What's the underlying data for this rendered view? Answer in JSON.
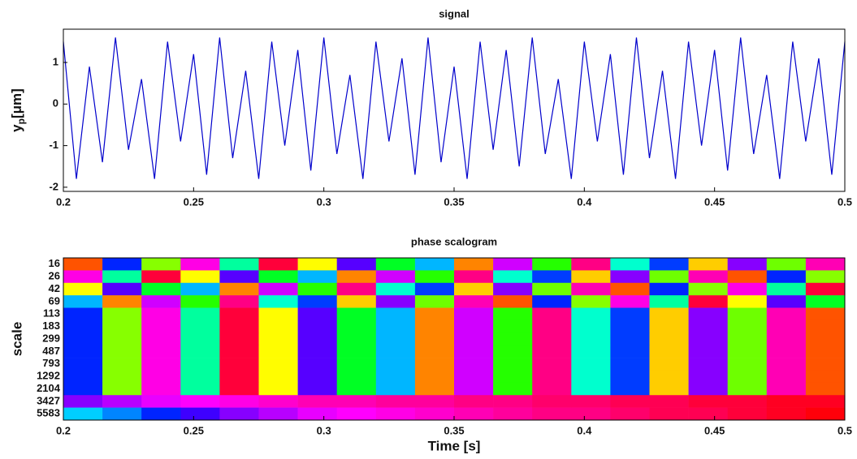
{
  "chart_data": [
    {
      "type": "line",
      "title": "signal",
      "ylabel": "y",
      "ylabel_sub": "p",
      "ylabel_unit": "[μm]",
      "color": "#0000cc",
      "x": [
        0.2,
        0.205,
        0.21,
        0.215,
        0.22,
        0.225,
        0.23,
        0.235,
        0.24,
        0.245,
        0.25,
        0.255,
        0.26,
        0.265,
        0.27,
        0.275,
        0.28,
        0.285,
        0.29,
        0.295,
        0.3,
        0.305,
        0.31,
        0.315,
        0.32,
        0.325,
        0.33,
        0.335,
        0.34,
        0.345,
        0.35,
        0.355,
        0.36,
        0.365,
        0.37,
        0.375,
        0.38,
        0.385,
        0.39,
        0.395,
        0.4,
        0.405,
        0.41,
        0.415,
        0.42,
        0.425,
        0.43,
        0.435,
        0.44,
        0.445,
        0.45,
        0.455,
        0.46,
        0.465,
        0.47,
        0.475,
        0.48,
        0.485,
        0.49,
        0.495,
        0.5
      ],
      "values": [
        1.5,
        -1.8,
        0.9,
        -1.4,
        1.6,
        -1.1,
        0.6,
        -1.8,
        1.5,
        -0.9,
        1.2,
        -1.7,
        1.6,
        -1.3,
        0.8,
        -1.8,
        1.5,
        -1.0,
        1.3,
        -1.6,
        1.6,
        -1.2,
        0.7,
        -1.8,
        1.5,
        -0.9,
        1.1,
        -1.7,
        1.6,
        -1.4,
        0.9,
        -1.8,
        1.5,
        -1.1,
        1.3,
        -1.5,
        1.6,
        -1.2,
        0.6,
        -1.8,
        1.5,
        -0.9,
        1.2,
        -1.7,
        1.6,
        -1.3,
        0.8,
        -1.8,
        1.5,
        -1.0,
        1.3,
        -1.6,
        1.6,
        -1.2,
        0.7,
        -1.8,
        1.5,
        -0.9,
        1.1,
        -1.7,
        1.5
      ],
      "xlim": [
        0.2,
        0.5
      ],
      "xticks": [
        0.2,
        0.25,
        0.3,
        0.35,
        0.4,
        0.45,
        0.5
      ],
      "ylim": [
        -2.1,
        1.8
      ],
      "yticks": [
        -2,
        -1,
        0,
        1
      ]
    },
    {
      "type": "heatmap",
      "title": "phase scalogram",
      "ylabel": "scale",
      "xlabel": "Time [s]",
      "colormap": "hsv",
      "zlim": [
        -3.14,
        3.14
      ],
      "x": [
        0.2,
        0.215,
        0.23,
        0.245,
        0.26,
        0.275,
        0.29,
        0.305,
        0.32,
        0.335,
        0.35,
        0.365,
        0.38,
        0.395,
        0.41,
        0.425,
        0.44,
        0.455,
        0.47,
        0.485
      ],
      "categories": [
        "16",
        "26",
        "42",
        "69",
        "113",
        "183",
        "299",
        "487",
        "793",
        "1292",
        "2104",
        "3427",
        "5583"
      ],
      "values": [
        [
          -2.8,
          0.9,
          -1.6,
          2.2,
          -0.4,
          2.9,
          -2.1,
          1.4,
          -0.9,
          0.3,
          -2.6,
          1.9,
          -1.2,
          2.6,
          -0.2,
          0.8,
          -2.3,
          1.6,
          -1.5,
          2.4
        ],
        [
          2.2,
          -0.4,
          2.9,
          -2.1,
          1.4,
          -0.9,
          0.3,
          -2.6,
          1.9,
          -1.2,
          2.6,
          -0.2,
          0.8,
          -2.3,
          1.6,
          -1.5,
          2.4,
          -2.8,
          0.9,
          -1.6
        ],
        [
          -2.1,
          1.4,
          -0.9,
          0.3,
          -2.6,
          1.9,
          -1.2,
          2.6,
          -0.2,
          0.8,
          -2.3,
          1.6,
          -1.5,
          2.4,
          -2.8,
          0.9,
          -1.6,
          2.2,
          -0.4,
          2.9
        ],
        [
          0.3,
          -2.6,
          1.9,
          -1.2,
          2.6,
          -0.2,
          0.8,
          -2.3,
          1.6,
          -1.5,
          2.4,
          -2.8,
          0.9,
          -1.6,
          2.2,
          -0.4,
          2.9,
          -2.1,
          1.4,
          -0.9
        ],
        [
          0.9,
          -1.6,
          2.2,
          -0.4,
          2.9,
          -2.1,
          1.4,
          -0.9,
          0.3,
          -2.6,
          1.9,
          -1.2,
          2.6,
          -0.2,
          0.8,
          -2.3,
          1.6,
          -1.5,
          2.4,
          -2.8
        ],
        [
          0.9,
          -1.6,
          2.2,
          -0.4,
          2.9,
          -2.1,
          1.4,
          -0.9,
          0.3,
          -2.6,
          1.9,
          -1.2,
          2.6,
          -0.2,
          0.8,
          -2.3,
          1.6,
          -1.5,
          2.4,
          -2.8
        ],
        [
          0.9,
          -1.6,
          2.2,
          -0.4,
          2.9,
          -2.1,
          1.4,
          -0.9,
          0.3,
          -2.6,
          1.9,
          -1.2,
          2.6,
          -0.2,
          0.8,
          -2.3,
          1.6,
          -1.5,
          2.4,
          -2.8
        ],
        [
          0.9,
          -1.6,
          2.2,
          -0.4,
          2.9,
          -2.1,
          1.4,
          -0.9,
          0.3,
          -2.6,
          1.9,
          -1.2,
          2.6,
          -0.2,
          0.8,
          -2.3,
          1.6,
          -1.5,
          2.4,
          -2.8
        ],
        [
          0.9,
          -1.6,
          2.2,
          -0.4,
          2.9,
          -2.1,
          1.4,
          -0.9,
          0.3,
          -2.6,
          1.9,
          -1.2,
          2.6,
          -0.2,
          0.8,
          -2.3,
          1.6,
          -1.5,
          2.4,
          -2.8
        ],
        [
          0.9,
          -1.6,
          2.2,
          -0.4,
          2.9,
          -2.1,
          1.4,
          -0.9,
          0.3,
          -2.6,
          1.9,
          -1.2,
          2.6,
          -0.2,
          0.8,
          -2.3,
          1.6,
          -1.5,
          2.4,
          -2.8
        ],
        [
          0.9,
          -1.6,
          2.2,
          -0.4,
          2.9,
          -2.1,
          1.4,
          -0.9,
          0.3,
          -2.6,
          1.9,
          -1.2,
          2.6,
          -0.2,
          0.8,
          -2.3,
          1.6,
          -1.5,
          2.4,
          -2.8
        ],
        [
          1.6,
          1.8,
          2.0,
          2.1,
          2.2,
          2.3,
          2.4,
          2.4,
          2.5,
          2.5,
          2.6,
          2.6,
          2.7,
          2.7,
          2.8,
          2.8,
          2.9,
          2.9,
          3.0,
          3.0
        ],
        [
          0.2,
          0.5,
          0.9,
          1.3,
          1.6,
          1.8,
          2.0,
          2.1,
          2.2,
          2.3,
          2.4,
          2.5,
          2.6,
          2.6,
          2.7,
          2.8,
          2.8,
          2.9,
          3.0,
          3.1
        ]
      ],
      "xlim": [
        0.2,
        0.5
      ],
      "xticks": [
        0.2,
        0.25,
        0.3,
        0.35,
        0.4,
        0.45,
        0.5
      ]
    }
  ]
}
